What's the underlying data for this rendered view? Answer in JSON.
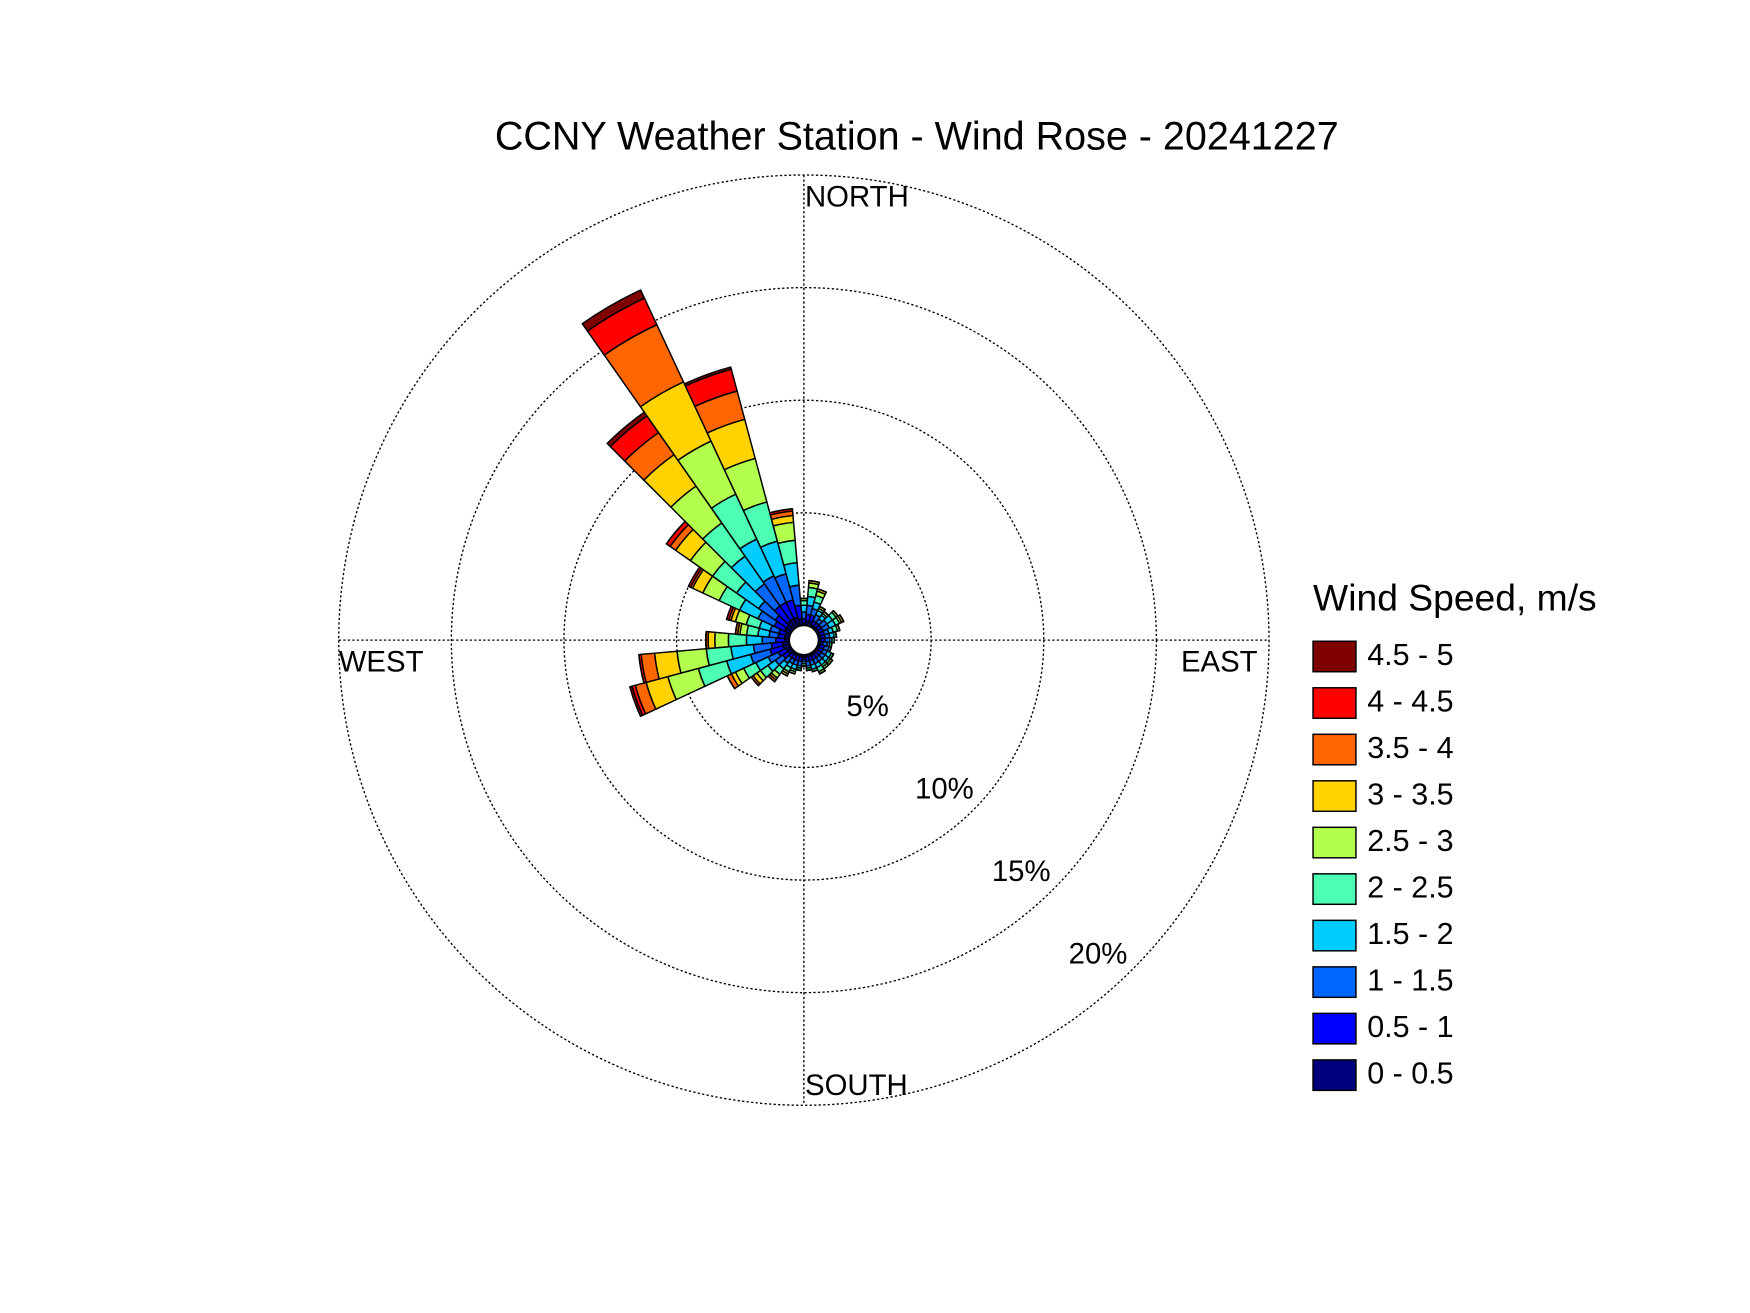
{
  "chart_data": {
    "type": "windrose",
    "title": "CCNY Weather Station - Wind Rose - 20241227",
    "legend_title": "Wind Speed, m/s",
    "compass": {
      "north": "NORTH",
      "east": "EAST",
      "south": "SOUTH",
      "west": "WEST"
    },
    "x": [
      0,
      10,
      20,
      30,
      40,
      50,
      60,
      70,
      80,
      90,
      100,
      110,
      120,
      130,
      140,
      150,
      160,
      170,
      180,
      190,
      200,
      210,
      220,
      230,
      240,
      250,
      260,
      270,
      280,
      290,
      300,
      310,
      320,
      330,
      340,
      350
    ],
    "rlim": [
      0,
      20
    ],
    "rticks": [
      {
        "value": 5,
        "label": "5%"
      },
      {
        "value": 10,
        "label": "10%"
      },
      {
        "value": 15,
        "label": "15%"
      },
      {
        "value": 20,
        "label": "20%"
      }
    ],
    "series": [
      {
        "name": "0 - 0.5",
        "color": "#00007f",
        "values": [
          0.1,
          0.2,
          0.2,
          0.1,
          0.1,
          0.1,
          0.1,
          0.1,
          0.1,
          0.1,
          0.1,
          0.1,
          0.1,
          0.1,
          0.1,
          0.1,
          0.1,
          0.1,
          0.1,
          0.1,
          0.1,
          0.1,
          0.1,
          0.2,
          0.2,
          0.3,
          0.3,
          0.2,
          0.2,
          0.2,
          0.3,
          0.3,
          0.4,
          0.4,
          0.4,
          0.3
        ]
      },
      {
        "name": "0.5 - 1",
        "color": "#0000ff",
        "values": [
          0.2,
          0.3,
          0.3,
          0.2,
          0.2,
          0.2,
          0.2,
          0.2,
          0.2,
          0.2,
          0.1,
          0.2,
          0.2,
          0.2,
          0.2,
          0.2,
          0.2,
          0.2,
          0.1,
          0.2,
          0.2,
          0.2,
          0.2,
          0.3,
          0.4,
          0.6,
          0.5,
          0.4,
          0.3,
          0.3,
          0.5,
          0.6,
          0.8,
          0.8,
          0.8,
          0.6
        ]
      },
      {
        "name": "1 - 1.5",
        "color": "#0066ff",
        "values": [
          0.3,
          0.4,
          0.3,
          0.3,
          0.2,
          0.3,
          0.3,
          0.2,
          0.2,
          0.2,
          0.2,
          0.2,
          0.2,
          0.2,
          0.2,
          0.2,
          0.2,
          0.2,
          0.1,
          0.2,
          0.2,
          0.2,
          0.3,
          0.4,
          0.5,
          0.9,
          0.8,
          0.6,
          0.4,
          0.4,
          0.8,
          0.9,
          1.2,
          1.3,
          1.2,
          0.9
        ]
      },
      {
        "name": "1.5 - 2",
        "color": "#00ccff",
        "values": [
          0.3,
          0.4,
          0.3,
          0.2,
          0.2,
          0.3,
          0.3,
          0.2,
          0.2,
          0.1,
          0.1,
          0.1,
          0.2,
          0.2,
          0.2,
          0.2,
          0.2,
          0.1,
          0.1,
          0.1,
          0.2,
          0.2,
          0.3,
          0.4,
          0.6,
          1.1,
          1.0,
          0.7,
          0.5,
          0.5,
          0.9,
          1.2,
          1.5,
          1.8,
          1.5,
          1.0
        ]
      },
      {
        "name": "2 - 2.5",
        "color": "#4dffb3",
        "values": [
          0.2,
          0.4,
          0.3,
          0.1,
          0.1,
          0.2,
          0.2,
          0.2,
          0.1,
          0.1,
          0.1,
          0,
          0.1,
          0.1,
          0.1,
          0.2,
          0.1,
          0.1,
          0.1,
          0.1,
          0.1,
          0.2,
          0.3,
          0.4,
          0.6,
          1.3,
          1.1,
          0.8,
          0.5,
          0.6,
          1.0,
          1.3,
          1.8,
          2.2,
          1.8,
          1.0
        ]
      },
      {
        "name": "2.5 - 3",
        "color": "#b3ff4d",
        "values": [
          0.1,
          0.2,
          0.2,
          0.1,
          0.1,
          0.1,
          0.1,
          0.1,
          0,
          0,
          0,
          0,
          0,
          0.1,
          0.1,
          0.1,
          0,
          0,
          0,
          0,
          0.1,
          0.1,
          0.2,
          0.2,
          0.4,
          1.4,
          1.3,
          0.6,
          0.3,
          0.5,
          0.8,
          1.2,
          2.0,
          2.6,
          2.0,
          0.8
        ]
      },
      {
        "name": "3 - 3.5",
        "color": "#ffd200",
        "values": [
          0,
          0.1,
          0.1,
          0,
          0,
          0,
          0.1,
          0,
          0,
          0,
          0,
          0,
          0,
          0,
          0,
          0,
          0,
          0,
          0,
          0,
          0,
          0.1,
          0.1,
          0.2,
          0.2,
          1.0,
          1.0,
          0.3,
          0.1,
          0.2,
          0.5,
          0.8,
          1.7,
          2.9,
          1.8,
          0.3
        ]
      },
      {
        "name": "3.5 - 4",
        "color": "#ff6600",
        "values": [
          0,
          0,
          0,
          0,
          0,
          0,
          0,
          0,
          0,
          0,
          0,
          0,
          0,
          0,
          0,
          0,
          0,
          0,
          0,
          0,
          0,
          0,
          0.1,
          0.1,
          0.2,
          0.5,
          0.6,
          0.1,
          0.1,
          0.1,
          0.1,
          0.3,
          1.2,
          2.8,
          1.3,
          0.2
        ]
      },
      {
        "name": "4 - 4.5",
        "color": "#ff0000",
        "values": [
          0,
          0,
          0,
          0,
          0,
          0,
          0,
          0,
          0,
          0,
          0,
          0,
          0,
          0,
          0,
          0,
          0,
          0,
          0,
          0,
          0,
          0,
          0,
          0,
          0,
          0.15,
          0.1,
          0,
          0,
          0.1,
          0.1,
          0.2,
          0.9,
          1.3,
          1.0,
          0.1
        ]
      },
      {
        "name": "4.5 - 5",
        "color": "#7f0000",
        "values": [
          0,
          0,
          0,
          0,
          0,
          0,
          0,
          0,
          0,
          0,
          0,
          0,
          0,
          0,
          0,
          0,
          0,
          0,
          0,
          0,
          0,
          0,
          0,
          0,
          0,
          0.1,
          0,
          0,
          0,
          0,
          0,
          0,
          0.2,
          0.4,
          0.1,
          0
        ]
      }
    ]
  }
}
